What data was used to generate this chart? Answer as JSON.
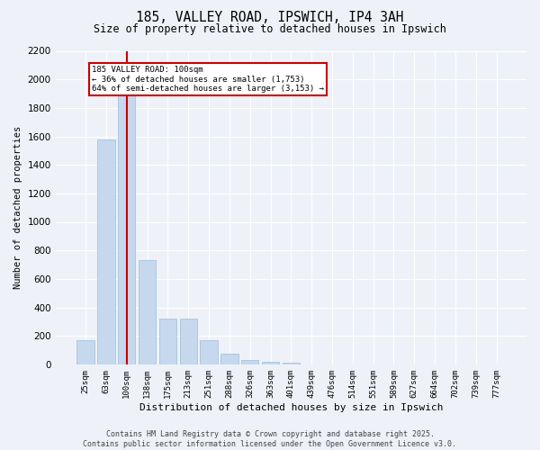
{
  "title": "185, VALLEY ROAD, IPSWICH, IP4 3AH",
  "subtitle": "Size of property relative to detached houses in Ipswich",
  "xlabel": "Distribution of detached houses by size in Ipswich",
  "ylabel": "Number of detached properties",
  "categories": [
    "25sqm",
    "63sqm",
    "100sqm",
    "138sqm",
    "175sqm",
    "213sqm",
    "251sqm",
    "288sqm",
    "326sqm",
    "363sqm",
    "401sqm",
    "439sqm",
    "476sqm",
    "514sqm",
    "551sqm",
    "589sqm",
    "627sqm",
    "664sqm",
    "702sqm",
    "739sqm",
    "777sqm"
  ],
  "values": [
    170,
    1580,
    1900,
    730,
    320,
    320,
    170,
    75,
    30,
    20,
    10,
    0,
    0,
    0,
    0,
    0,
    0,
    0,
    0,
    0,
    0
  ],
  "bar_color": "#c5d8ee",
  "bar_edge_color": "#9bbcdb",
  "vline_x": 2,
  "vline_color": "#cc0000",
  "annotation_text": "185 VALLEY ROAD: 100sqm\n← 36% of detached houses are smaller (1,753)\n64% of semi-detached houses are larger (3,153) →",
  "annotation_box_color": "#ffffff",
  "annotation_box_edge": "#cc0000",
  "ylim": [
    0,
    2200
  ],
  "yticks": [
    0,
    200,
    400,
    600,
    800,
    1000,
    1200,
    1400,
    1600,
    1800,
    2000,
    2200
  ],
  "background_color": "#eef2f8",
  "grid_color": "#ffffff",
  "footer_line1": "Contains HM Land Registry data © Crown copyright and database right 2025.",
  "footer_line2": "Contains public sector information licensed under the Open Government Licence v3.0."
}
